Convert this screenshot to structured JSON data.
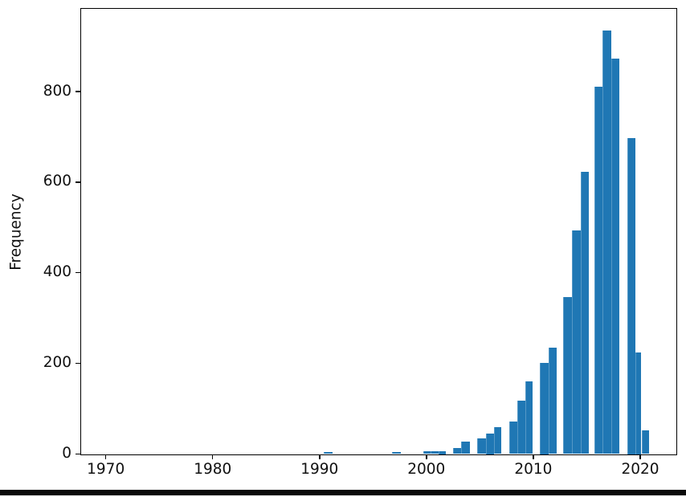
{
  "chart_data": {
    "type": "bar",
    "subtype": "histogram",
    "title": "",
    "xlabel": "",
    "ylabel": "Frequency",
    "legend": "none",
    "grid": false,
    "bar_color": "#1f77b4",
    "spine_color": "#000000",
    "text_color": "#111111",
    "xlim": [
      1967.6,
      2023.5
    ],
    "ylim": [
      0,
      979
    ],
    "x_ticks": [
      {
        "value": 1970,
        "label": "1970"
      },
      {
        "value": 1980,
        "label": "1980"
      },
      {
        "value": 1990,
        "label": "1990"
      },
      {
        "value": 2000,
        "label": "2000"
      },
      {
        "value": 2010,
        "label": "2010"
      },
      {
        "value": 2020,
        "label": "2020"
      }
    ],
    "y_ticks": [
      {
        "value": 0,
        "label": "0"
      },
      {
        "value": 200,
        "label": "200"
      },
      {
        "value": 400,
        "label": "400"
      },
      {
        "value": 600,
        "label": "600"
      },
      {
        "value": 800,
        "label": "800"
      }
    ],
    "bars": [
      {
        "x0": 1990.42,
        "x1": 1991.23,
        "count": 5
      },
      {
        "x0": 1996.8,
        "x1": 1997.61,
        "count": 5
      },
      {
        "x0": 1999.69,
        "x1": 2000.4,
        "count": 6
      },
      {
        "x0": 2000.4,
        "x1": 2001.12,
        "count": 6
      },
      {
        "x0": 2001.12,
        "x1": 2001.83,
        "count": 7
      },
      {
        "x0": 2002.49,
        "x1": 2003.27,
        "count": 14
      },
      {
        "x0": 2003.27,
        "x1": 2004.07,
        "count": 27
      },
      {
        "x0": 2004.77,
        "x1": 2005.57,
        "count": 34
      },
      {
        "x0": 2005.57,
        "x1": 2006.33,
        "count": 46
      },
      {
        "x0": 2006.33,
        "x1": 2007.03,
        "count": 60
      },
      {
        "x0": 2007.72,
        "x1": 2008.5,
        "count": 71
      },
      {
        "x0": 2008.5,
        "x1": 2009.28,
        "count": 118
      },
      {
        "x0": 2009.28,
        "x1": 2009.91,
        "count": 160
      },
      {
        "x0": 2010.61,
        "x1": 2011.4,
        "count": 202
      },
      {
        "x0": 2011.4,
        "x1": 2012.21,
        "count": 234
      },
      {
        "x0": 2012.82,
        "x1": 2013.62,
        "count": 346
      },
      {
        "x0": 2013.62,
        "x1": 2014.42,
        "count": 493
      },
      {
        "x0": 2014.42,
        "x1": 2015.21,
        "count": 623
      },
      {
        "x0": 2015.68,
        "x1": 2016.48,
        "count": 810
      },
      {
        "x0": 2016.48,
        "x1": 2017.27,
        "count": 935
      },
      {
        "x0": 2017.27,
        "x1": 2018.07,
        "count": 872
      },
      {
        "x0": 2018.78,
        "x1": 2019.57,
        "count": 698
      },
      {
        "x0": 2019.57,
        "x1": 2020.12,
        "count": 225
      },
      {
        "x0": 2020.12,
        "x1": 2020.83,
        "count": 53
      }
    ]
  },
  "window": {
    "bottom_divider_color": "#0a0a0a"
  }
}
